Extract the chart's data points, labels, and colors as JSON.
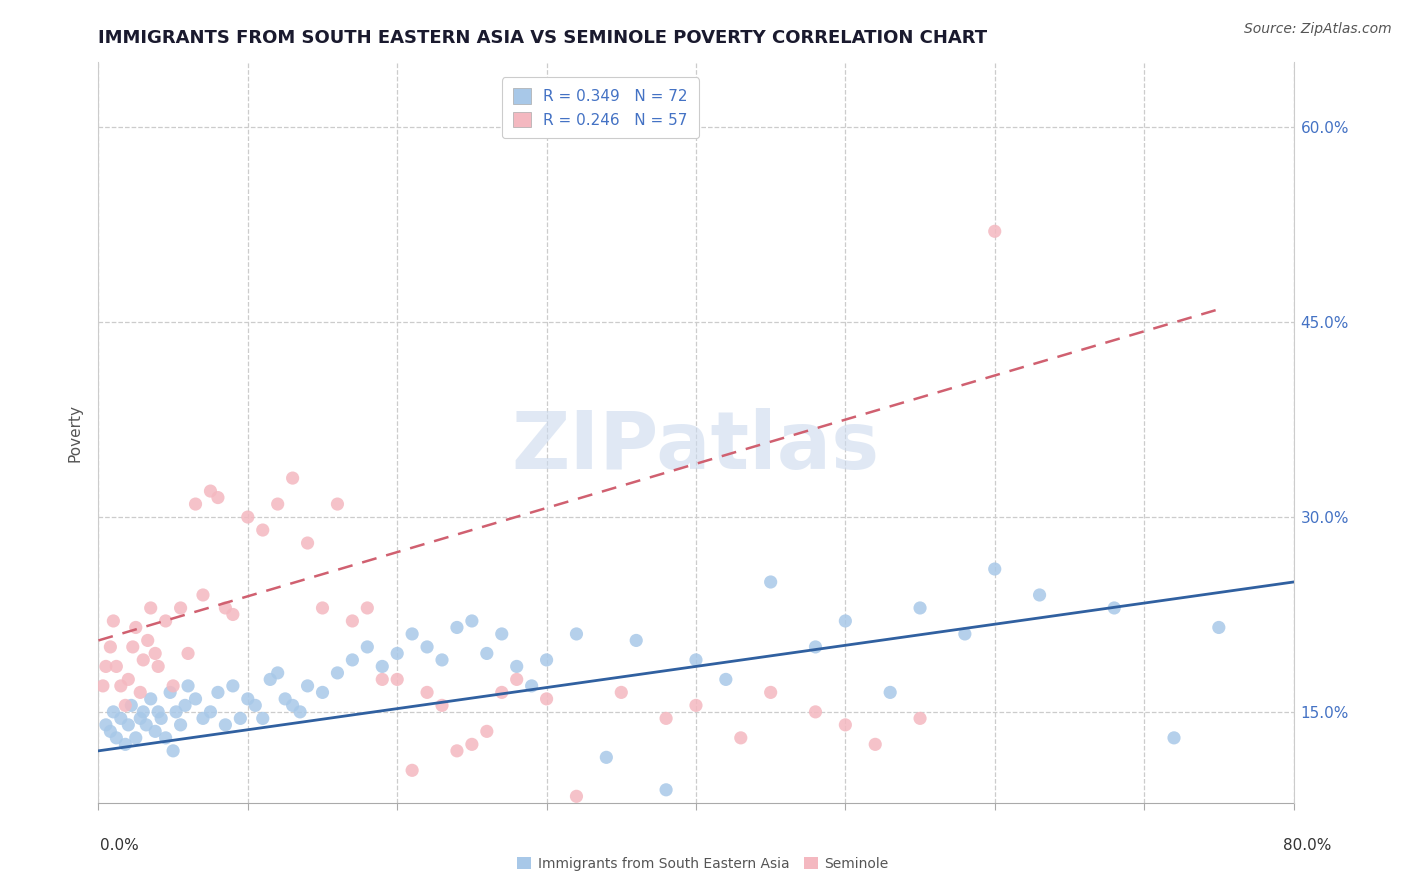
{
  "title": "IMMIGRANTS FROM SOUTH EASTERN ASIA VS SEMINOLE POVERTY CORRELATION CHART",
  "source_text": "Source: ZipAtlas.com",
  "ylabel": "Poverty",
  "xlim": [
    0.0,
    80.0
  ],
  "ylim": [
    8.0,
    65.0
  ],
  "xticks": [
    0.0,
    10.0,
    20.0,
    30.0,
    40.0,
    50.0,
    60.0,
    70.0,
    80.0
  ],
  "xticklabels_shown": [
    "0.0%",
    "",
    "",
    "",
    "",
    "",
    "",
    "",
    "80.0%"
  ],
  "yticks": [
    15.0,
    30.0,
    45.0,
    60.0
  ],
  "yticklabels": [
    "15.0%",
    "30.0%",
    "45.0%",
    "60.0%"
  ],
  "blue_R": 0.349,
  "blue_N": 72,
  "pink_R": 0.246,
  "pink_N": 57,
  "blue_dot_color": "#a8c8e8",
  "pink_dot_color": "#f4b8c0",
  "blue_line_color": "#3060a0",
  "pink_line_color": "#d06070",
  "watermark": "ZIPatlas",
  "legend_label_blue": "Immigrants from South Eastern Asia",
  "legend_label_pink": "Seminole",
  "blue_scatter_x": [
    0.5,
    0.8,
    1.0,
    1.2,
    1.5,
    1.8,
    2.0,
    2.2,
    2.5,
    2.8,
    3.0,
    3.2,
    3.5,
    3.8,
    4.0,
    4.2,
    4.5,
    4.8,
    5.0,
    5.2,
    5.5,
    5.8,
    6.0,
    6.5,
    7.0,
    7.5,
    8.0,
    8.5,
    9.0,
    9.5,
    10.0,
    10.5,
    11.0,
    11.5,
    12.0,
    12.5,
    13.0,
    13.5,
    14.0,
    15.0,
    16.0,
    17.0,
    18.0,
    19.0,
    20.0,
    21.0,
    22.0,
    23.0,
    24.0,
    25.0,
    26.0,
    27.0,
    28.0,
    29.0,
    30.0,
    32.0,
    34.0,
    36.0,
    38.0,
    40.0,
    42.0,
    45.0,
    48.0,
    50.0,
    53.0,
    55.0,
    58.0,
    60.0,
    63.0,
    68.0,
    72.0,
    75.0
  ],
  "blue_scatter_y": [
    14.0,
    13.5,
    15.0,
    13.0,
    14.5,
    12.5,
    14.0,
    15.5,
    13.0,
    14.5,
    15.0,
    14.0,
    16.0,
    13.5,
    15.0,
    14.5,
    13.0,
    16.5,
    12.0,
    15.0,
    14.0,
    15.5,
    17.0,
    16.0,
    14.5,
    15.0,
    16.5,
    14.0,
    17.0,
    14.5,
    16.0,
    15.5,
    14.5,
    17.5,
    18.0,
    16.0,
    15.5,
    15.0,
    17.0,
    16.5,
    18.0,
    19.0,
    20.0,
    18.5,
    19.5,
    21.0,
    20.0,
    19.0,
    21.5,
    22.0,
    19.5,
    21.0,
    18.5,
    17.0,
    19.0,
    21.0,
    11.5,
    20.5,
    9.0,
    19.0,
    17.5,
    25.0,
    20.0,
    22.0,
    16.5,
    23.0,
    21.0,
    26.0,
    24.0,
    23.0,
    13.0,
    21.5
  ],
  "pink_scatter_x": [
    0.3,
    0.5,
    0.8,
    1.0,
    1.2,
    1.5,
    1.8,
    2.0,
    2.3,
    2.5,
    2.8,
    3.0,
    3.3,
    3.5,
    3.8,
    4.0,
    4.5,
    5.0,
    5.5,
    6.0,
    6.5,
    7.0,
    7.5,
    8.0,
    8.5,
    9.0,
    10.0,
    11.0,
    12.0,
    13.0,
    14.0,
    15.0,
    16.0,
    17.0,
    18.0,
    19.0,
    20.0,
    21.0,
    22.0,
    23.0,
    24.0,
    25.0,
    26.0,
    27.0,
    28.0,
    30.0,
    32.0,
    35.0,
    38.0,
    40.0,
    43.0,
    45.0,
    48.0,
    50.0,
    52.0,
    55.0,
    60.0
  ],
  "pink_scatter_y": [
    17.0,
    18.5,
    20.0,
    22.0,
    18.5,
    17.0,
    15.5,
    17.5,
    20.0,
    21.5,
    16.5,
    19.0,
    20.5,
    23.0,
    19.5,
    18.5,
    22.0,
    17.0,
    23.0,
    19.5,
    31.0,
    24.0,
    32.0,
    31.5,
    23.0,
    22.5,
    30.0,
    29.0,
    31.0,
    33.0,
    28.0,
    23.0,
    31.0,
    22.0,
    23.0,
    17.5,
    17.5,
    10.5,
    16.5,
    15.5,
    12.0,
    12.5,
    13.5,
    16.5,
    17.5,
    16.0,
    8.5,
    16.5,
    14.5,
    15.5,
    13.0,
    16.5,
    15.0,
    14.0,
    12.5,
    14.5,
    52.0
  ],
  "blue_line_x0": 0.0,
  "blue_line_x1": 80.0,
  "blue_line_y0": 12.0,
  "blue_line_y1": 25.0,
  "pink_line_x0": 0.0,
  "pink_line_x1": 75.0,
  "pink_line_y0": 20.5,
  "pink_line_y1": 46.0,
  "grid_color": "#cccccc",
  "background_color": "#ffffff",
  "title_fontsize": 13,
  "axis_label_fontsize": 11,
  "tick_fontsize": 11,
  "legend_fontsize": 11,
  "source_fontsize": 10,
  "tick_color": "#4472c4"
}
